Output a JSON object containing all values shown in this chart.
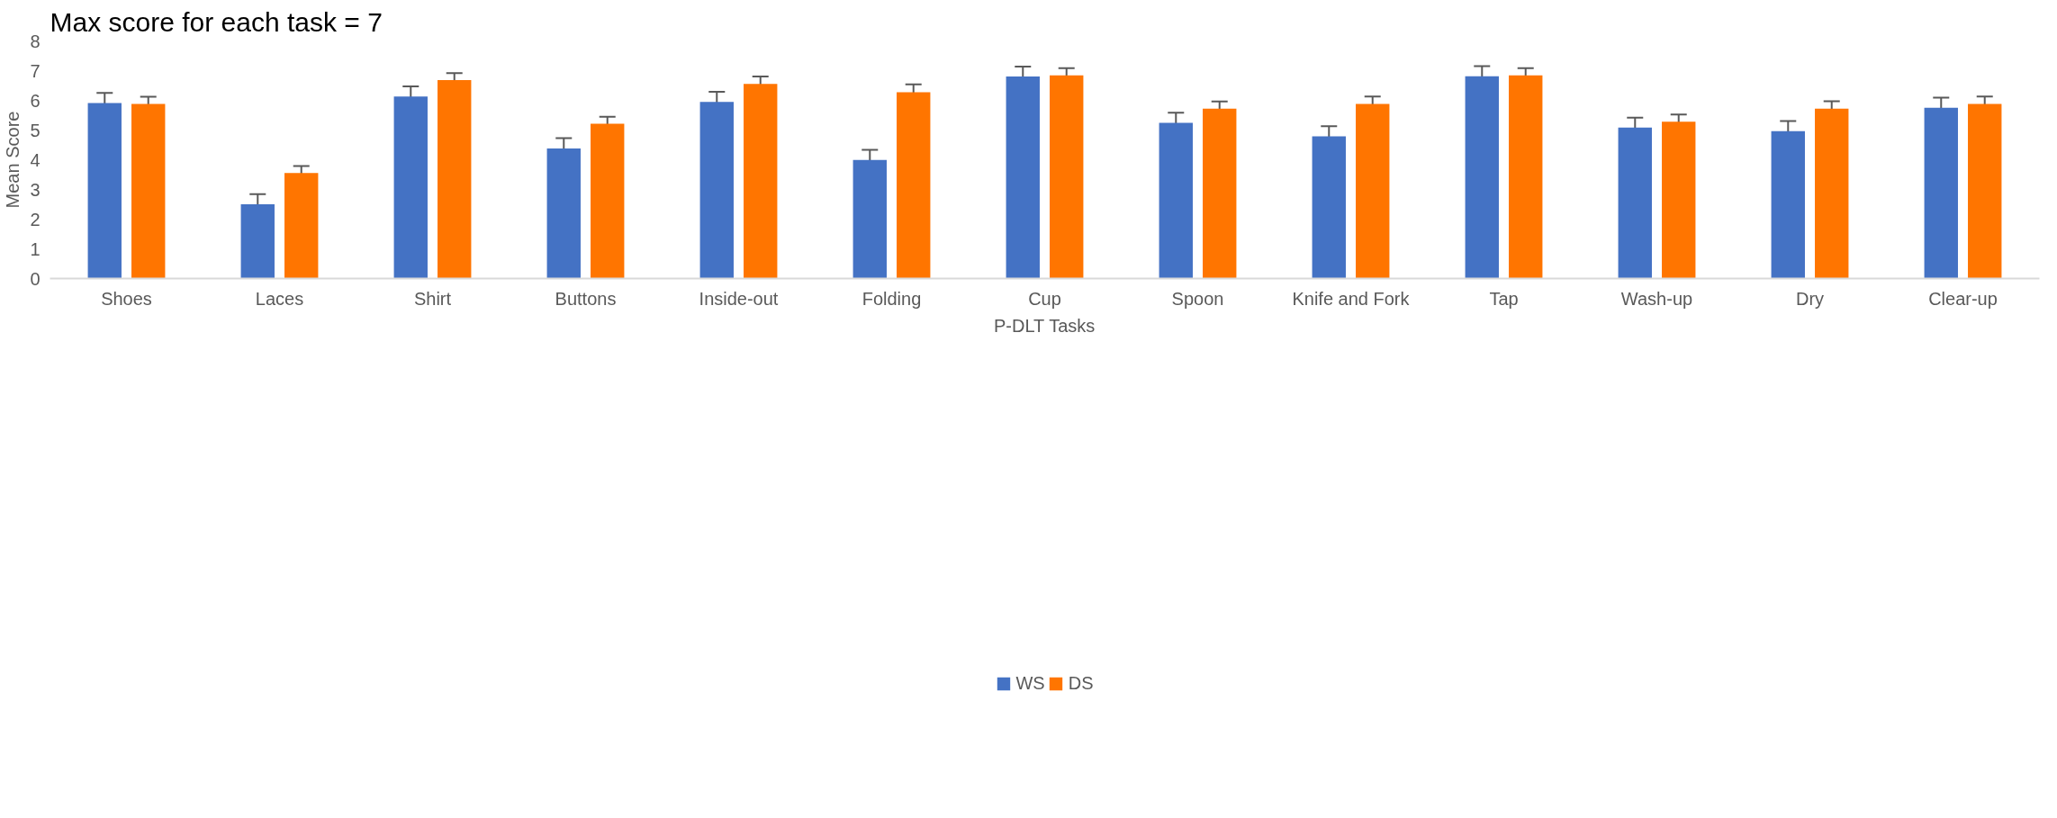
{
  "chart_data": {
    "type": "bar",
    "title": "Max score for each task = 7",
    "xlabel": "P-DLT Tasks",
    "ylabel": "Mean Score",
    "categories": [
      "Shoes",
      "Laces",
      "Shirt",
      "Buttons",
      "Inside-out",
      "Folding",
      "Cup",
      "Spoon",
      "Knife and Fork",
      "Tap",
      "Wash-up",
      "Dry",
      "Clear-up"
    ],
    "series": [
      {
        "name": "WS",
        "color": "#4472c4",
        "values": [
          5.91,
          2.5,
          6.13,
          4.38,
          5.95,
          3.99,
          6.8,
          5.24,
          4.79,
          6.81,
          5.08,
          4.96,
          5.75
        ],
        "errors": [
          0.34,
          0.34,
          0.34,
          0.35,
          0.34,
          0.34,
          0.34,
          0.34,
          0.34,
          0.34,
          0.34,
          0.34,
          0.34
        ]
      },
      {
        "name": "DS",
        "color": "#ff7500",
        "values": [
          5.88,
          3.55,
          6.68,
          5.21,
          6.55,
          6.27,
          6.84,
          5.72,
          5.88,
          6.84,
          5.28,
          5.72,
          5.88
        ],
        "errors": [
          0.24,
          0.24,
          0.24,
          0.24,
          0.25,
          0.27,
          0.24,
          0.24,
          0.25,
          0.24,
          0.24,
          0.25,
          0.25
        ]
      }
    ],
    "ylim": [
      0,
      8
    ],
    "yticks": [
      0,
      1,
      2,
      3,
      4,
      5,
      6,
      7,
      8
    ],
    "grid": false,
    "legend": "bottom"
  }
}
